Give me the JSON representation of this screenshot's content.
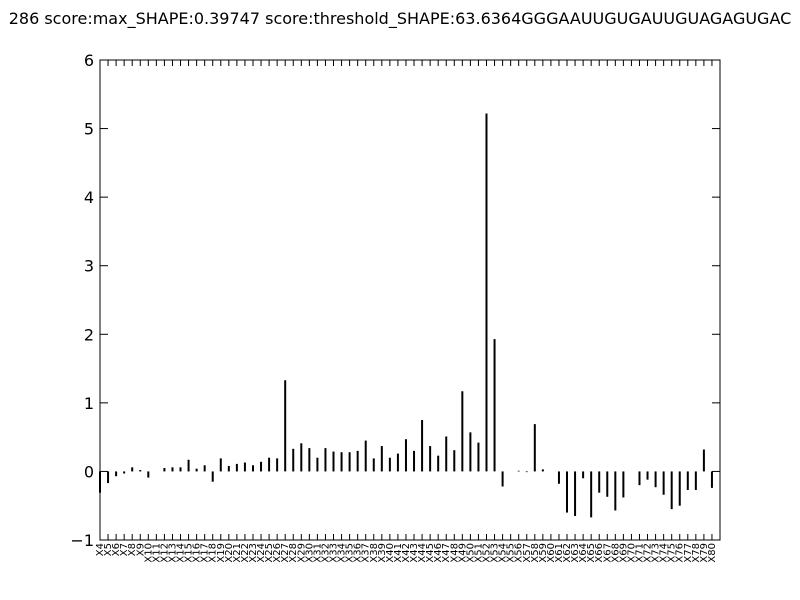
{
  "chart_data": {
    "type": "bar",
    "title": "286 score:max_SHAPE:0.39747 score:threshold_SHAPE:63.6364GGGAAUUGUGAUUGUAGAGUGAC",
    "ylim": [
      -1,
      6
    ],
    "yticks": [
      "−1",
      "0",
      "1",
      "2",
      "3",
      "4",
      "5",
      "6"
    ],
    "grid": false,
    "categories": [
      "X4",
      "X5",
      "X6",
      "X7",
      "X8",
      "X9",
      "X10",
      "X11",
      "X12",
      "X13",
      "X14",
      "X15",
      "X16",
      "X17",
      "X18",
      "X19",
      "X20",
      "X21",
      "X22",
      "X23",
      "X24",
      "X25",
      "X26",
      "X27",
      "X28",
      "X29",
      "X30",
      "X31",
      "X32",
      "X33",
      "X34",
      "X35",
      "X36",
      "X37",
      "X38",
      "X39",
      "X40",
      "X41",
      "X42",
      "X43",
      "X44",
      "X45",
      "X46",
      "X47",
      "X48",
      "X49",
      "X50",
      "X51",
      "X52",
      "X53",
      "X54",
      "X55",
      "X56",
      "X57",
      "X58",
      "X59",
      "X60",
      "X61",
      "X62",
      "X63",
      "X64",
      "X65",
      "X66",
      "X67",
      "X68",
      "X69",
      "X70",
      "X71",
      "X72",
      "X73",
      "X74",
      "X75",
      "X76",
      "X77",
      "X78",
      "X79",
      "X80"
    ],
    "values": [
      -0.31,
      -0.17,
      -0.07,
      -0.03,
      0.06,
      0.02,
      -0.09,
      0,
      0.05,
      0.06,
      0.06,
      0.17,
      0.04,
      0.09,
      -0.15,
      0.19,
      0.08,
      0.11,
      0.13,
      0.09,
      0.14,
      0.2,
      0.19,
      1.33,
      0.33,
      0.41,
      0.34,
      0.2,
      0.34,
      0.29,
      0.28,
      0.28,
      0.3,
      0.45,
      0.19,
      0.37,
      0.2,
      0.26,
      0.47,
      0.3,
      0.75,
      0.37,
      0.23,
      0.51,
      0.31,
      1.17,
      0.57,
      0.42,
      5.22,
      1.93,
      -0.22,
      0,
      0.01,
      -0.01,
      0.69,
      0.03,
      0,
      -0.18,
      -0.6,
      -0.65,
      -0.1,
      -0.67,
      -0.31,
      -0.37,
      -0.57,
      -0.38,
      0,
      -0.2,
      -0.12,
      -0.23,
      -0.34,
      -0.55,
      -0.5,
      -0.27,
      -0.27,
      0.32,
      -0.24
    ]
  }
}
